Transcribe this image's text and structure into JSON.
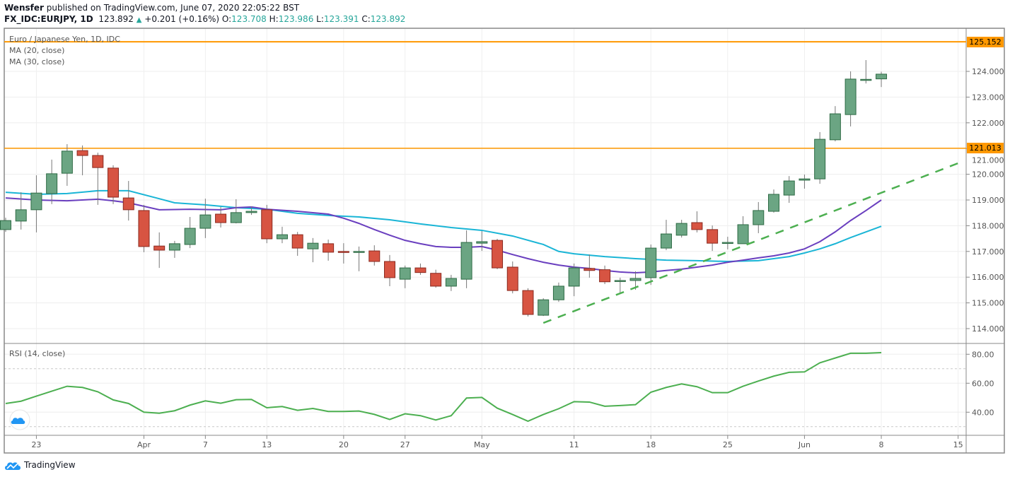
{
  "header": {
    "author": "Wensfer",
    "published": "published on TradingView.com, June 07, 2020 22:05:22 BST",
    "symbol": "FX_IDC:EURJPY, 1D",
    "last": "123.892",
    "change": "+0.201 (+0.16%)",
    "o_label": "O:",
    "o": "123.708",
    "h_label": "H:",
    "h": "123.986",
    "l_label": "L:",
    "l": "123.391",
    "c_label": "C:",
    "c": "123.892"
  },
  "legend": {
    "title": "Euro / Japanese Yen, 1D, IDC",
    "ma20": "MA (20, close)",
    "ma30": "MA (30, close)",
    "rsi": "RSI (14, close)"
  },
  "footer": {
    "brand": "TradingView",
    "logo_icon": "tradingview-cloud-icon"
  },
  "colors": {
    "up": "#6ba583",
    "down": "#d75442",
    "ma20": "#6a3fbf",
    "ma30": "#1ab5d6",
    "rsi": "#4caf50",
    "hline": "#ff9800",
    "trend": "#4caf50"
  },
  "chart_data": [
    {
      "type": "candlestick",
      "price_axis": {
        "ticks": [
          "114.000",
          "115.000",
          "116.000",
          "117.000",
          "118.000",
          "119.000",
          "120.000",
          "121.000",
          "122.000",
          "123.000",
          "124.000"
        ],
        "range": [
          113.6,
          125.5
        ]
      },
      "x_ticks": [
        {
          "label": "23",
          "index": 2
        },
        {
          "label": "Apr",
          "index": 9
        },
        {
          "label": "7",
          "index": 13
        },
        {
          "label": "13",
          "index": 17
        },
        {
          "label": "20",
          "index": 22
        },
        {
          "label": "27",
          "index": 26
        },
        {
          "label": "May",
          "index": 31
        },
        {
          "label": "11",
          "index": 37
        },
        {
          "label": "18",
          "index": 42
        },
        {
          "label": "25",
          "index": 47
        },
        {
          "label": "Jun",
          "index": 52
        },
        {
          "label": "8",
          "index": 57
        },
        {
          "label": "15",
          "index": 62
        }
      ],
      "horizontal_lines": [
        {
          "price": 125.152,
          "label": "125.152"
        },
        {
          "price": 121.013,
          "label": "121.013"
        }
      ],
      "trend_line": {
        "from": [
          35,
          114.22
        ],
        "to": [
          62,
          120.43
        ],
        "style": "dashed"
      },
      "ohlc": [
        [
          117.85,
          118.31,
          117.76,
          118.2
        ],
        [
          118.18,
          119.3,
          117.85,
          118.62
        ],
        [
          118.62,
          119.96,
          117.74,
          119.27
        ],
        [
          119.25,
          120.57,
          118.84,
          120.02
        ],
        [
          120.04,
          121.17,
          119.55,
          120.9
        ],
        [
          120.92,
          121.12,
          119.96,
          120.73
        ],
        [
          120.73,
          120.84,
          118.81,
          120.26
        ],
        [
          120.24,
          120.35,
          118.84,
          119.11
        ],
        [
          119.08,
          119.74,
          118.2,
          118.62
        ],
        [
          118.59,
          118.81,
          116.97,
          117.19
        ],
        [
          117.21,
          117.74,
          116.36,
          117.05
        ],
        [
          117.05,
          117.41,
          116.75,
          117.3
        ],
        [
          117.27,
          118.34,
          117.13,
          117.9
        ],
        [
          117.9,
          119.05,
          117.52,
          118.42
        ],
        [
          118.45,
          118.73,
          117.93,
          118.12
        ],
        [
          118.12,
          119.03,
          118.09,
          118.51
        ],
        [
          118.51,
          118.75,
          118.42,
          118.56
        ],
        [
          118.62,
          118.81,
          117.32,
          117.49
        ],
        [
          117.49,
          117.96,
          117.32,
          117.65
        ],
        [
          117.65,
          117.76,
          116.83,
          117.13
        ],
        [
          117.1,
          117.52,
          116.58,
          117.32
        ],
        [
          117.3,
          117.46,
          116.64,
          116.97
        ],
        [
          117.0,
          117.32,
          116.53,
          116.97
        ],
        [
          116.97,
          117.19,
          116.23,
          117.0
        ],
        [
          117.02,
          117.24,
          116.45,
          116.61
        ],
        [
          116.61,
          116.86,
          115.65,
          115.98
        ],
        [
          115.92,
          116.45,
          115.57,
          116.36
        ],
        [
          116.36,
          116.53,
          116.09,
          116.18
        ],
        [
          116.15,
          116.29,
          115.59,
          115.65
        ],
        [
          115.65,
          116.09,
          115.46,
          115.95
        ],
        [
          115.92,
          117.82,
          115.57,
          117.35
        ],
        [
          117.32,
          117.79,
          117.02,
          117.38
        ],
        [
          117.43,
          117.49,
          116.31,
          116.36
        ],
        [
          116.39,
          116.61,
          115.37,
          115.48
        ],
        [
          115.48,
          115.57,
          114.47,
          114.55
        ],
        [
          114.52,
          115.18,
          114.49,
          115.12
        ],
        [
          115.12,
          115.79,
          115.04,
          115.65
        ],
        [
          115.65,
          116.53,
          115.26,
          116.36
        ],
        [
          116.34,
          116.88,
          115.98,
          116.26
        ],
        [
          116.29,
          116.45,
          115.73,
          115.82
        ],
        [
          115.87,
          115.98,
          115.35,
          115.87
        ],
        [
          115.87,
          116.23,
          115.51,
          115.95
        ],
        [
          115.98,
          117.27,
          115.7,
          117.13
        ],
        [
          117.13,
          118.23,
          117.05,
          117.68
        ],
        [
          117.63,
          118.23,
          117.54,
          118.09
        ],
        [
          118.12,
          118.56,
          117.74,
          117.85
        ],
        [
          117.85,
          118.01,
          117.02,
          117.32
        ],
        [
          117.34,
          117.57,
          117.08,
          117.35
        ],
        [
          117.3,
          118.37,
          117.3,
          118.04
        ],
        [
          118.04,
          118.92,
          117.71,
          118.59
        ],
        [
          118.56,
          119.41,
          118.51,
          119.22
        ],
        [
          119.19,
          119.93,
          118.89,
          119.74
        ],
        [
          119.77,
          119.99,
          119.44,
          119.82
        ],
        [
          119.82,
          121.64,
          119.63,
          121.36
        ],
        [
          121.34,
          122.65,
          121.28,
          122.35
        ],
        [
          122.32,
          124.0,
          121.86,
          123.7
        ],
        [
          123.67,
          124.44,
          123.53,
          123.69
        ],
        [
          123.708,
          123.986,
          123.391,
          123.892
        ]
      ],
      "ma20": [
        [
          0,
          119.08
        ],
        [
          2,
          119.0
        ],
        [
          4,
          118.97
        ],
        [
          6,
          119.03
        ],
        [
          7,
          118.97
        ],
        [
          8,
          118.89
        ],
        [
          10,
          118.62
        ],
        [
          12,
          118.64
        ],
        [
          14,
          118.62
        ],
        [
          15,
          118.7
        ],
        [
          16,
          118.73
        ],
        [
          17,
          118.64
        ],
        [
          19,
          118.56
        ],
        [
          21,
          118.45
        ],
        [
          22,
          118.29
        ],
        [
          23,
          118.09
        ],
        [
          24,
          117.85
        ],
        [
          25,
          117.63
        ],
        [
          26,
          117.43
        ],
        [
          27,
          117.3
        ],
        [
          28,
          117.19
        ],
        [
          29,
          117.16
        ],
        [
          30,
          117.16
        ],
        [
          31,
          117.19
        ],
        [
          32,
          117.05
        ],
        [
          33,
          116.88
        ],
        [
          34,
          116.72
        ],
        [
          35,
          116.58
        ],
        [
          36,
          116.47
        ],
        [
          37,
          116.39
        ],
        [
          38,
          116.34
        ],
        [
          39,
          116.26
        ],
        [
          40,
          116.2
        ],
        [
          41,
          116.17
        ],
        [
          42,
          116.2
        ],
        [
          43,
          116.26
        ],
        [
          44,
          116.31
        ],
        [
          45,
          116.39
        ],
        [
          46,
          116.47
        ],
        [
          47,
          116.58
        ],
        [
          48,
          116.66
        ],
        [
          49,
          116.75
        ],
        [
          50,
          116.83
        ],
        [
          51,
          116.94
        ],
        [
          52,
          117.1
        ],
        [
          53,
          117.38
        ],
        [
          54,
          117.76
        ],
        [
          55,
          118.2
        ],
        [
          56,
          118.59
        ],
        [
          57,
          119.0
        ]
      ],
      "ma30": [
        [
          0,
          119.3
        ],
        [
          2,
          119.22
        ],
        [
          4,
          119.25
        ],
        [
          6,
          119.36
        ],
        [
          8,
          119.36
        ],
        [
          10,
          119.05
        ],
        [
          11,
          118.89
        ],
        [
          13,
          118.81
        ],
        [
          15,
          118.7
        ],
        [
          17,
          118.64
        ],
        [
          19,
          118.48
        ],
        [
          21,
          118.4
        ],
        [
          23,
          118.34
        ],
        [
          25,
          118.23
        ],
        [
          27,
          118.07
        ],
        [
          29,
          117.93
        ],
        [
          31,
          117.82
        ],
        [
          33,
          117.6
        ],
        [
          35,
          117.27
        ],
        [
          36,
          117.0
        ],
        [
          37,
          116.91
        ],
        [
          39,
          116.8
        ],
        [
          41,
          116.72
        ],
        [
          43,
          116.66
        ],
        [
          45,
          116.64
        ],
        [
          47,
          116.61
        ],
        [
          49,
          116.64
        ],
        [
          51,
          116.8
        ],
        [
          52,
          116.94
        ],
        [
          53,
          117.1
        ],
        [
          54,
          117.3
        ],
        [
          55,
          117.54
        ],
        [
          56,
          117.76
        ],
        [
          57,
          117.98
        ]
      ]
    },
    {
      "type": "line",
      "name": "RSI (14, close)",
      "y_ticks": [
        "40.00",
        "60.00",
        "80.00"
      ],
      "range": [
        26,
        87
      ],
      "bands": [
        30,
        70
      ],
      "values": [
        46.0,
        47.6,
        51.1,
        54.5,
        57.9,
        57.1,
        54.1,
        48.5,
        46.0,
        40.0,
        39.3,
        41.0,
        44.9,
        47.8,
        46.2,
        48.6,
        48.8,
        43.1,
        43.9,
        41.3,
        42.6,
        40.5,
        40.5,
        40.8,
        38.5,
        35.0,
        38.9,
        37.6,
        34.6,
        37.6,
        49.8,
        50.2,
        42.8,
        38.4,
        33.8,
        38.4,
        42.4,
        47.3,
        47.0,
        44.1,
        44.6,
        45.2,
        53.8,
        57.1,
        59.5,
        57.6,
        53.5,
        53.5,
        57.9,
        61.5,
        64.9,
        67.5,
        67.8,
        74.1,
        77.4,
        80.7,
        80.7,
        81.1
      ]
    }
  ]
}
